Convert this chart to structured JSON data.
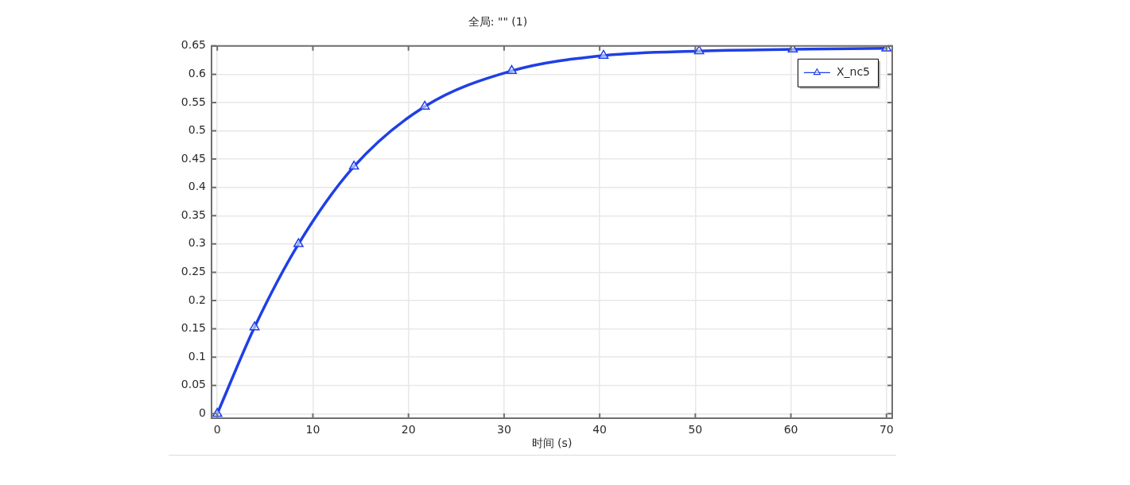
{
  "chart_data": {
    "type": "line",
    "title": "全局: \"\" (1)",
    "xlabel": "时间 (s)",
    "x": [
      0,
      3.9,
      8.5,
      14.3,
      21.7,
      30.8,
      40.4,
      50.4,
      60.2,
      70
    ],
    "series": [
      {
        "name": "X_nc5",
        "color": "#1f3fe6",
        "values": [
          0,
          0.153,
          0.3,
          0.437,
          0.543,
          0.606,
          0.633,
          0.641,
          0.644,
          0.646
        ]
      }
    ],
    "xlim": [
      -0.6,
      70.6
    ],
    "xticks": [
      0,
      10,
      20,
      30,
      40,
      50,
      60,
      70
    ],
    "ylim": [
      -0.008,
      0.65
    ],
    "yticks": [
      0,
      0.05,
      0.1,
      0.15,
      0.2,
      0.25,
      0.3,
      0.35,
      0.4,
      0.45,
      0.5,
      0.55,
      0.6,
      0.65
    ],
    "grid": true,
    "legend": "top right",
    "marker": "triangle",
    "line_style": "solid"
  }
}
